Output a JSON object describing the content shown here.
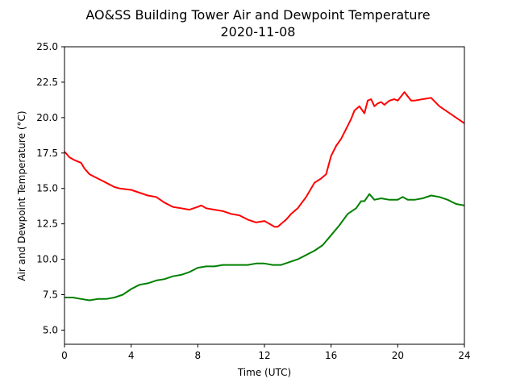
{
  "chart_data": {
    "type": "line",
    "title": "AO&SS Building Tower Air and Dewpoint Temperature",
    "subtitle": "2020-11-08",
    "xlabel": "Time (UTC)",
    "ylabel": "Air and Dewpoint Temperature (°C)",
    "xlim": [
      0,
      24
    ],
    "ylim": [
      4.0,
      25.0
    ],
    "xticks": [
      0,
      4,
      8,
      12,
      16,
      20,
      24
    ],
    "xtick_labels": [
      "0",
      "4",
      "8",
      "12",
      "16",
      "20",
      "24"
    ],
    "yticks": [
      5.0,
      7.5,
      10.0,
      12.5,
      15.0,
      17.5,
      20.0,
      22.5,
      25.0
    ],
    "ytick_labels": [
      "5.0",
      "7.5",
      "10.0",
      "12.5",
      "15.0",
      "17.5",
      "20.0",
      "22.5",
      "25.0"
    ],
    "grid": false,
    "legend": false,
    "series": [
      {
        "color": "#ff0000",
        "x": [
          0,
          0.3,
          0.6,
          1.0,
          1.2,
          1.5,
          2.0,
          2.5,
          3.0,
          3.3,
          4.0,
          4.5,
          5.0,
          5.5,
          6.0,
          6.5,
          7.0,
          7.5,
          8.0,
          8.2,
          8.5,
          9.0,
          9.5,
          10.0,
          10.5,
          11.0,
          11.5,
          12.0,
          12.3,
          12.6,
          12.8,
          13.0,
          13.3,
          13.6,
          14.0,
          14.5,
          15.0,
          15.4,
          15.7,
          16.0,
          16.3,
          16.6,
          16.9,
          17.2,
          17.4,
          17.7,
          18.0,
          18.2,
          18.4,
          18.6,
          18.8,
          19.0,
          19.2,
          19.5,
          19.8,
          20.0,
          20.2,
          20.4,
          20.6,
          20.8,
          21.0,
          21.5,
          22.0,
          22.5,
          23.0,
          23.5,
          24.0
        ],
        "y": [
          17.6,
          17.2,
          17.0,
          16.8,
          16.4,
          16.0,
          15.7,
          15.4,
          15.1,
          15.0,
          14.9,
          14.7,
          14.5,
          14.4,
          14.0,
          13.7,
          13.6,
          13.5,
          13.7,
          13.8,
          13.6,
          13.5,
          13.4,
          13.2,
          13.1,
          12.8,
          12.6,
          12.7,
          12.5,
          12.3,
          12.3,
          12.5,
          12.8,
          13.2,
          13.6,
          14.4,
          15.4,
          15.7,
          16.0,
          17.3,
          18.0,
          18.5,
          19.2,
          19.9,
          20.5,
          20.8,
          20.3,
          21.2,
          21.3,
          20.8,
          21.0,
          21.1,
          20.9,
          21.2,
          21.3,
          21.2,
          21.5,
          21.8,
          21.5,
          21.2,
          21.2,
          21.3,
          21.4,
          20.8,
          20.4,
          20.0,
          19.6
        ]
      },
      {
        "color": "#008000",
        "x": [
          0,
          0.5,
          1.0,
          1.5,
          2.0,
          2.5,
          3.0,
          3.5,
          4.0,
          4.5,
          5.0,
          5.5,
          6.0,
          6.5,
          7.0,
          7.5,
          8.0,
          8.5,
          9.0,
          9.5,
          10.0,
          10.5,
          11.0,
          11.5,
          12.0,
          12.5,
          13.0,
          13.5,
          14.0,
          14.5,
          15.0,
          15.5,
          16.0,
          16.5,
          17.0,
          17.5,
          17.8,
          18.0,
          18.3,
          18.6,
          19.0,
          19.5,
          20.0,
          20.3,
          20.6,
          21.0,
          21.5,
          22.0,
          22.5,
          23.0,
          23.5,
          24.0
        ],
        "y": [
          7.3,
          7.3,
          7.2,
          7.1,
          7.2,
          7.2,
          7.3,
          7.5,
          7.9,
          8.2,
          8.3,
          8.5,
          8.6,
          8.8,
          8.9,
          9.1,
          9.4,
          9.5,
          9.5,
          9.6,
          9.6,
          9.6,
          9.6,
          9.7,
          9.7,
          9.6,
          9.6,
          9.8,
          10.0,
          10.3,
          10.6,
          11.0,
          11.7,
          12.4,
          13.2,
          13.6,
          14.1,
          14.1,
          14.6,
          14.2,
          14.3,
          14.2,
          14.2,
          14.4,
          14.2,
          14.2,
          14.3,
          14.5,
          14.4,
          14.2,
          13.9,
          13.8
        ]
      }
    ]
  }
}
